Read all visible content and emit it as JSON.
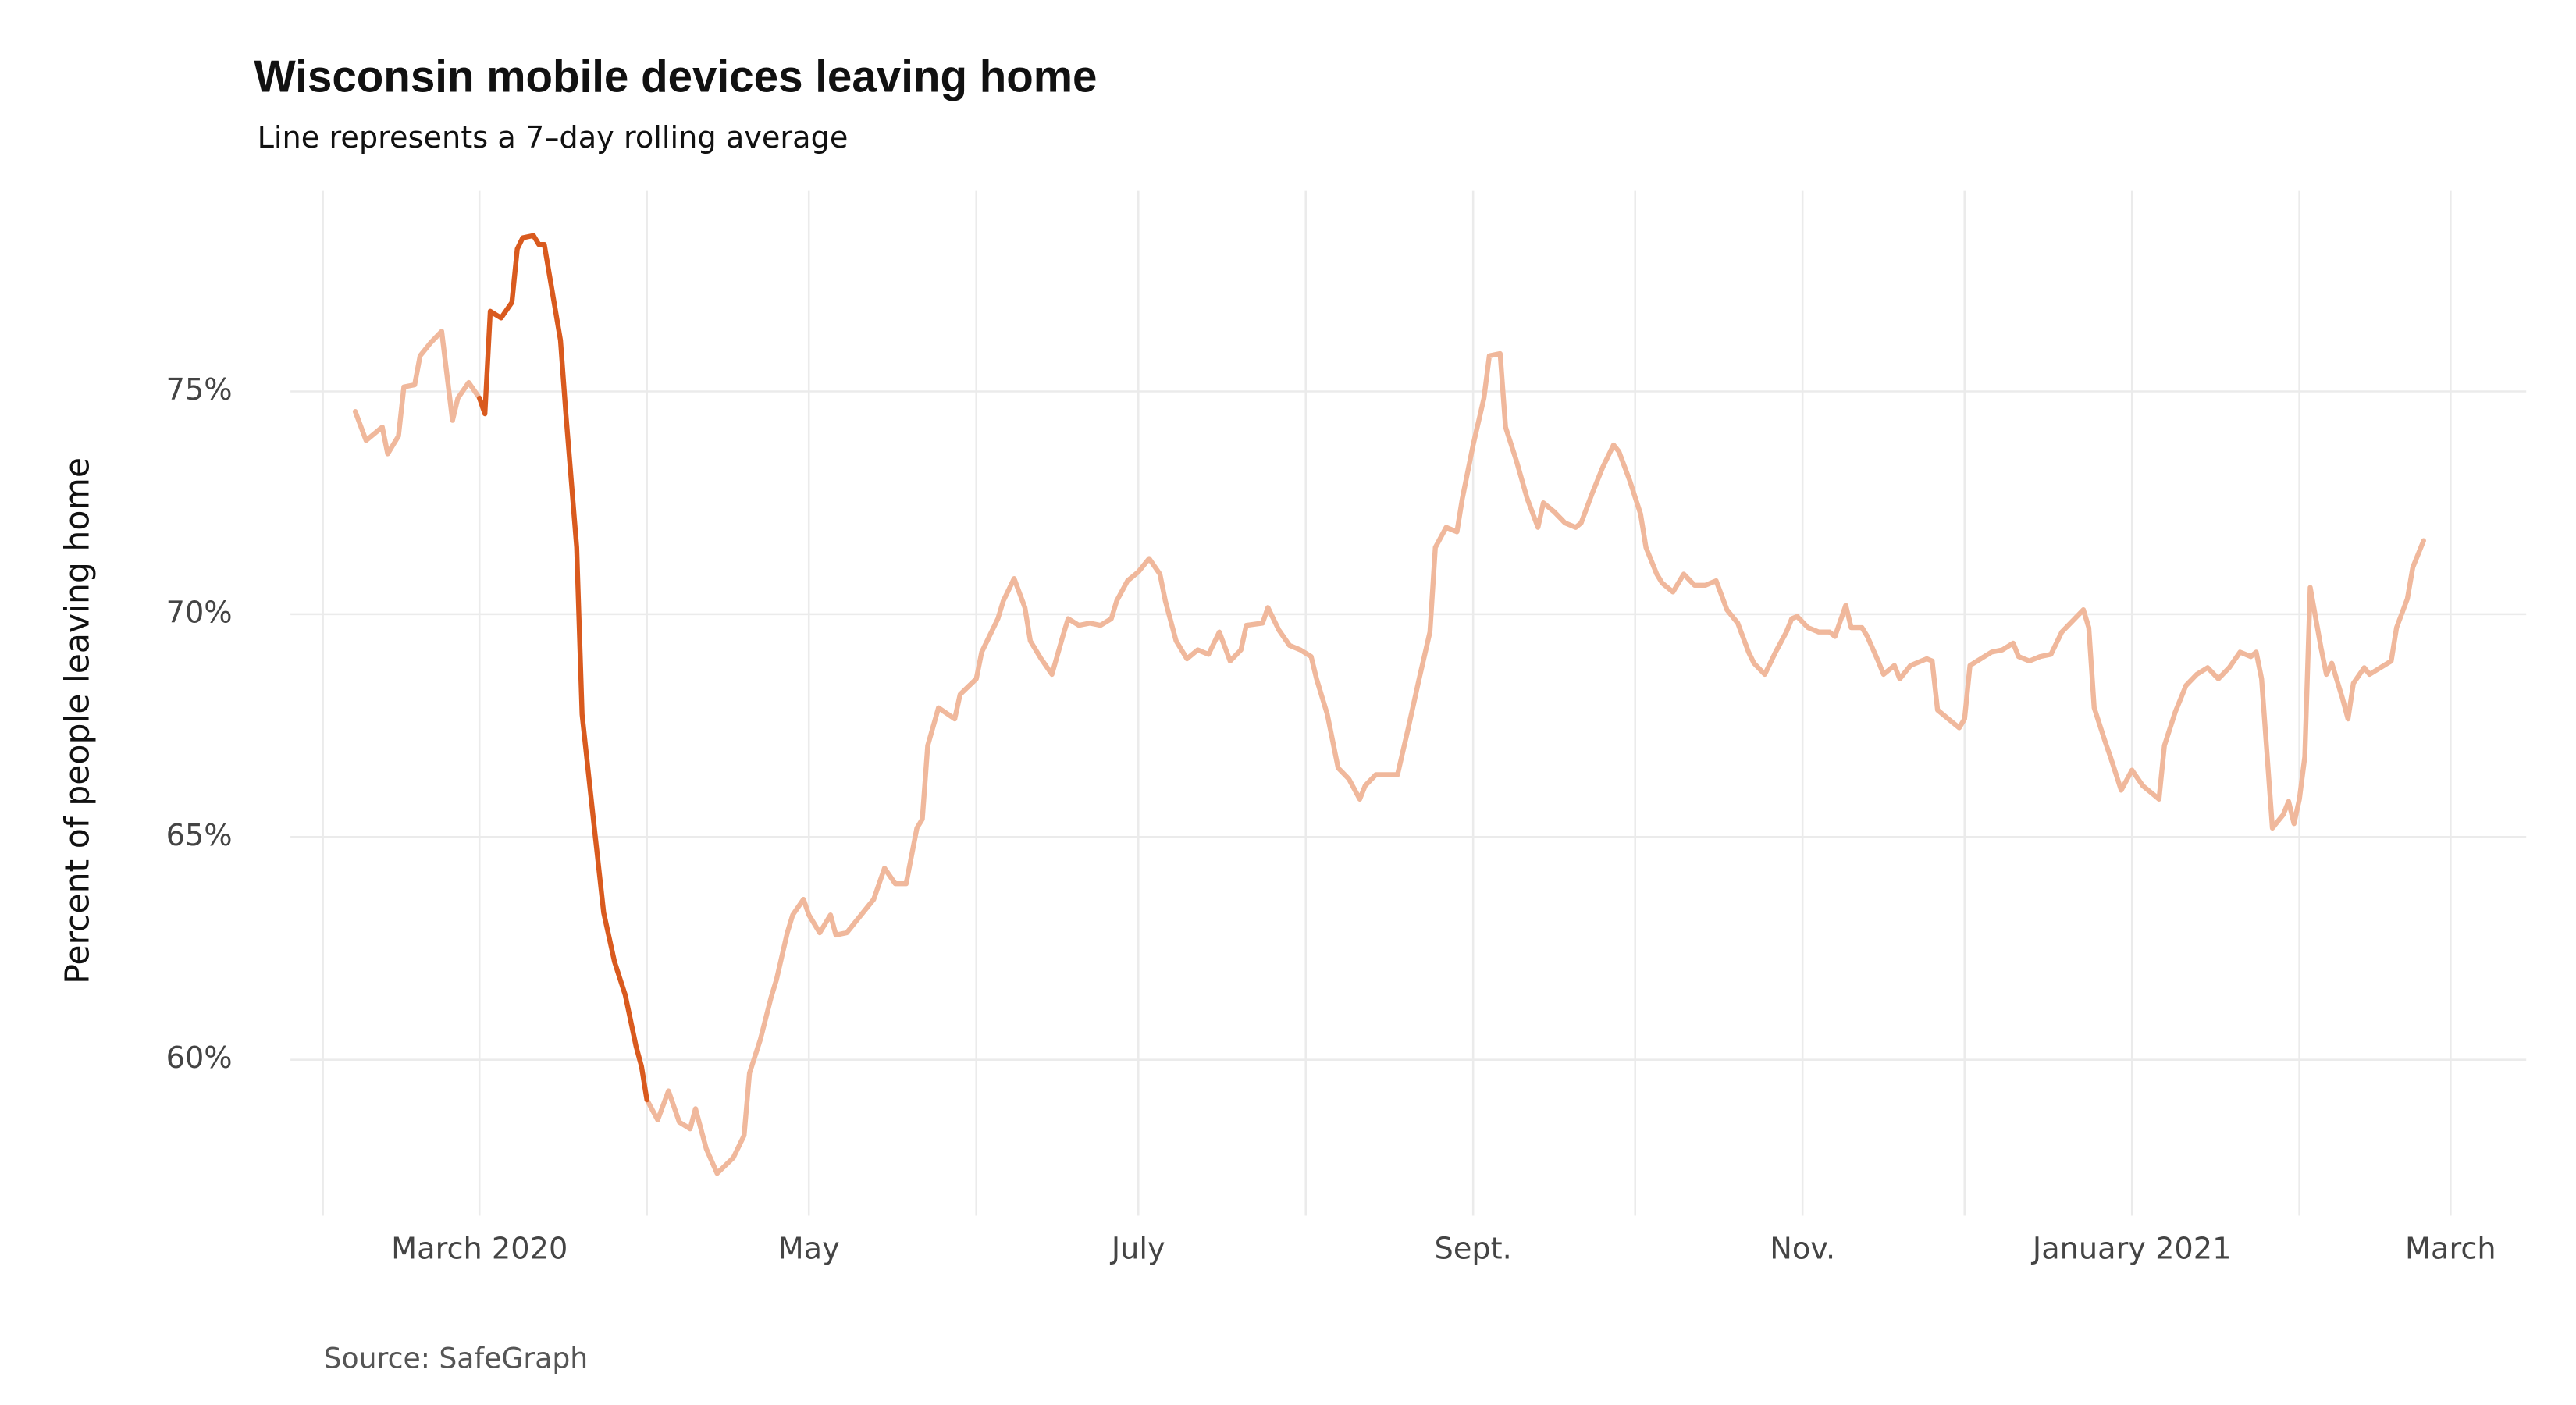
{
  "chart_data": {
    "type": "line",
    "title": "Wisconsin mobile devices leaving home",
    "subtitle": "Line represents a 7–day rolling average",
    "y_label": "Percent of people leaving home",
    "source": "Source: SafeGraph",
    "xlim": [
      "2020-01-26",
      "2021-03-15"
    ],
    "ylim": [
      56.5,
      79.5
    ],
    "yticks": [
      {
        "value": 60,
        "label": "60%"
      },
      {
        "value": 65,
        "label": "65%"
      },
      {
        "value": 70,
        "label": "70%"
      },
      {
        "value": 75,
        "label": "75%"
      }
    ],
    "xticks": [
      {
        "value": "2020-03-01",
        "label": "March 2020"
      },
      {
        "value": "2020-05-01",
        "label": "May"
      },
      {
        "value": "2020-07-01",
        "label": "July"
      },
      {
        "value": "2020-09-01",
        "label": "Sept."
      },
      {
        "value": "2020-11-01",
        "label": "Nov."
      },
      {
        "value": "2021-01-01",
        "label": "January 2021"
      },
      {
        "value": "2021-03-01",
        "label": "March"
      }
    ],
    "x_minor_ticks": [
      "2020-02-01",
      "2020-04-01",
      "2020-06-01",
      "2020-08-01",
      "2020-10-01",
      "2020-12-01",
      "2021-02-01"
    ],
    "grid": true,
    "x": [
      "2020-02-07",
      "2020-02-09",
      "2020-02-12",
      "2020-02-13",
      "2020-02-15",
      "2020-02-16",
      "2020-02-18",
      "2020-02-19",
      "2020-02-21",
      "2020-02-23",
      "2020-02-25",
      "2020-02-26",
      "2020-02-28",
      "2020-03-01",
      "2020-03-02",
      "2020-03-03",
      "2020-03-05",
      "2020-03-07",
      "2020-03-08",
      "2020-03-09",
      "2020-03-11",
      "2020-03-12",
      "2020-03-13",
      "2020-03-16",
      "2020-03-17",
      "2020-03-19",
      "2020-03-20",
      "2020-03-22",
      "2020-03-24",
      "2020-03-26",
      "2020-03-28",
      "2020-03-30",
      "2020-03-31",
      "2020-04-01",
      "2020-04-03",
      "2020-04-05",
      "2020-04-07",
      "2020-04-09",
      "2020-04-10",
      "2020-04-12",
      "2020-04-14",
      "2020-04-17",
      "2020-04-19",
      "2020-04-20",
      "2020-04-22",
      "2020-04-24",
      "2020-04-25",
      "2020-04-27",
      "2020-04-28",
      "2020-04-30",
      "2020-05-01",
      "2020-05-03",
      "2020-05-05",
      "2020-05-06",
      "2020-05-08",
      "2020-05-11",
      "2020-05-13",
      "2020-05-15",
      "2020-05-17",
      "2020-05-19",
      "2020-05-21",
      "2020-05-22",
      "2020-05-23",
      "2020-05-25",
      "2020-05-28",
      "2020-05-29",
      "2020-06-01",
      "2020-06-02",
      "2020-06-05",
      "2020-06-06",
      "2020-06-08",
      "2020-06-10",
      "2020-06-11",
      "2020-06-13",
      "2020-06-15",
      "2020-06-17",
      "2020-06-18",
      "2020-06-20",
      "2020-06-22",
      "2020-06-24",
      "2020-06-26",
      "2020-06-27",
      "2020-06-29",
      "2020-07-01",
      "2020-07-03",
      "2020-07-05",
      "2020-07-06",
      "2020-07-08",
      "2020-07-10",
      "2020-07-12",
      "2020-07-14",
      "2020-07-16",
      "2020-07-18",
      "2020-07-20",
      "2020-07-21",
      "2020-07-24",
      "2020-07-25",
      "2020-07-27",
      "2020-07-29",
      "2020-07-31",
      "2020-08-02",
      "2020-08-03",
      "2020-08-05",
      "2020-08-07",
      "2020-08-09",
      "2020-08-11",
      "2020-08-12",
      "2020-08-14",
      "2020-08-16",
      "2020-08-18",
      "2020-08-20",
      "2020-08-22",
      "2020-08-24",
      "2020-08-25",
      "2020-08-27",
      "2020-08-29",
      "2020-08-30",
      "2020-09-01",
      "2020-09-03",
      "2020-09-04",
      "2020-09-06",
      "2020-09-07",
      "2020-09-09",
      "2020-09-11",
      "2020-09-13",
      "2020-09-14",
      "2020-09-16",
      "2020-09-18",
      "2020-09-20",
      "2020-09-21",
      "2020-09-23",
      "2020-09-25",
      "2020-09-27",
      "2020-09-28",
      "2020-09-30",
      "2020-10-02",
      "2020-10-03",
      "2020-10-05",
      "2020-10-06",
      "2020-10-08",
      "2020-10-10",
      "2020-10-12",
      "2020-10-14",
      "2020-10-16",
      "2020-10-18",
      "2020-10-20",
      "2020-10-22",
      "2020-10-23",
      "2020-10-25",
      "2020-10-27",
      "2020-10-29",
      "2020-10-30",
      "2020-10-31",
      "2020-11-02",
      "2020-11-04",
      "2020-11-06",
      "2020-11-07",
      "2020-11-09",
      "2020-11-10",
      "2020-11-12",
      "2020-11-13",
      "2020-11-15",
      "2020-11-16",
      "2020-11-18",
      "2020-11-19",
      "2020-11-21",
      "2020-11-22",
      "2020-11-24",
      "2020-11-25",
      "2020-11-26",
      "2020-11-28",
      "2020-11-30",
      "2020-12-01",
      "2020-12-02",
      "2020-12-04",
      "2020-12-06",
      "2020-12-08",
      "2020-12-10",
      "2020-12-11",
      "2020-12-13",
      "2020-12-15",
      "2020-12-17",
      "2020-12-19",
      "2020-12-21",
      "2020-12-23",
      "2020-12-24",
      "2020-12-25",
      "2020-12-27",
      "2020-12-28",
      "2020-12-30",
      "2021-01-01",
      "2021-01-03",
      "2021-01-05",
      "2021-01-06",
      "2021-01-07",
      "2021-01-09",
      "2021-01-11",
      "2021-01-13",
      "2021-01-15",
      "2021-01-17",
      "2021-01-19",
      "2021-01-21",
      "2021-01-23",
      "2021-01-24",
      "2021-01-25",
      "2021-01-27",
      "2021-01-29",
      "2021-01-30",
      "2021-01-31",
      "2021-02-01",
      "2021-02-02",
      "2021-02-03",
      "2021-02-05",
      "2021-02-06",
      "2021-02-07",
      "2021-02-09",
      "2021-02-10",
      "2021-02-11",
      "2021-02-13",
      "2021-02-14",
      "2021-02-16",
      "2021-02-18",
      "2021-02-19",
      "2021-02-21",
      "2021-02-22",
      "2021-02-24"
    ],
    "series": [
      {
        "color": "#f0b89c",
        "values": [
          74.55,
          73.9,
          74.2,
          73.6,
          74.0,
          75.1,
          75.15,
          75.8,
          76.1,
          76.35,
          74.35,
          74.85,
          75.2,
          74.85,
          null,
          null,
          null,
          null,
          null,
          null,
          null,
          null,
          null,
          null,
          null,
          null,
          null,
          null,
          null,
          null,
          null,
          null,
          null,
          59.1,
          58.65,
          59.3,
          58.6,
          58.45,
          58.9,
          58.0,
          57.45,
          57.8,
          58.3,
          59.7,
          60.45,
          61.4,
          61.8,
          62.85,
          63.25,
          63.6,
          63.25,
          62.85,
          63.25,
          62.8,
          62.85,
          63.3,
          63.6,
          64.3,
          63.95,
          63.95,
          65.2,
          65.4,
          67.05,
          67.9,
          67.65,
          68.2,
          68.55,
          69.15,
          69.9,
          70.3,
          70.8,
          70.15,
          69.4,
          69.0,
          68.65,
          69.5,
          69.9,
          69.75,
          69.8,
          69.75,
          69.9,
          70.3,
          70.75,
          70.95,
          71.25,
          70.9,
          70.3,
          69.4,
          69.0,
          69.2,
          69.1,
          69.6,
          68.95,
          69.2,
          69.75,
          69.8,
          70.15,
          69.65,
          69.3,
          69.2,
          69.05,
          68.55,
          67.75,
          66.55,
          66.3,
          65.85,
          66.15,
          66.4,
          66.4,
          66.4,
          67.45,
          68.55,
          69.6,
          71.5,
          71.95,
          71.85,
          72.6,
          73.8,
          74.85,
          75.8,
          75.85,
          74.2,
          73.45,
          72.6,
          71.95,
          72.5,
          72.3,
          72.05,
          71.95,
          72.05,
          72.7,
          73.3,
          73.8,
          73.65,
          73.0,
          72.25,
          71.5,
          70.9,
          70.7,
          70.5,
          70.9,
          70.65,
          70.65,
          70.75,
          70.1,
          69.8,
          69.15,
          68.9,
          68.65,
          69.15,
          69.6,
          69.9,
          69.95,
          69.7,
          69.6,
          69.6,
          69.5,
          70.2,
          69.7,
          69.7,
          69.5,
          68.95,
          68.65,
          68.85,
          68.55,
          68.85,
          68.9,
          69.0,
          68.95,
          67.85,
          67.65,
          67.45,
          67.65,
          68.85,
          69.0,
          69.15,
          69.2,
          69.35,
          69.05,
          68.95,
          69.05,
          69.1,
          69.6,
          69.85,
          70.1,
          69.7,
          67.9,
          67.15,
          66.8,
          66.05,
          66.5,
          66.15,
          65.95,
          65.85,
          67.05,
          67.8,
          68.4,
          68.65,
          68.8,
          68.55,
          68.8,
          69.15,
          69.05,
          69.15,
          68.55,
          65.2,
          65.5,
          65.8,
          65.3,
          65.85,
          66.8,
          70.6,
          69.25,
          68.65,
          68.9,
          68.1,
          67.65,
          68.45,
          68.8,
          68.65,
          68.8,
          68.95,
          69.7,
          70.35,
          71.05,
          71.65
        ]
      },
      {
        "color": "#d95a1e",
        "x": [
          "2020-03-01",
          "2020-03-02",
          "2020-03-03",
          "2020-03-05",
          "2020-03-07",
          "2020-03-08",
          "2020-03-09",
          "2020-03-11",
          "2020-03-12",
          "2020-03-13",
          "2020-03-16",
          "2020-03-17",
          "2020-03-19",
          "2020-03-20",
          "2020-03-22",
          "2020-03-24",
          "2020-03-26",
          "2020-03-28",
          "2020-03-30",
          "2020-03-31",
          "2020-04-01"
        ],
        "values": [
          74.85,
          74.5,
          76.8,
          76.65,
          77.0,
          78.2,
          78.45,
          78.5,
          78.3,
          78.3,
          76.15,
          74.5,
          71.5,
          67.75,
          65.5,
          63.3,
          62.2,
          61.45,
          60.3,
          59.85,
          59.1
        ]
      }
    ]
  }
}
